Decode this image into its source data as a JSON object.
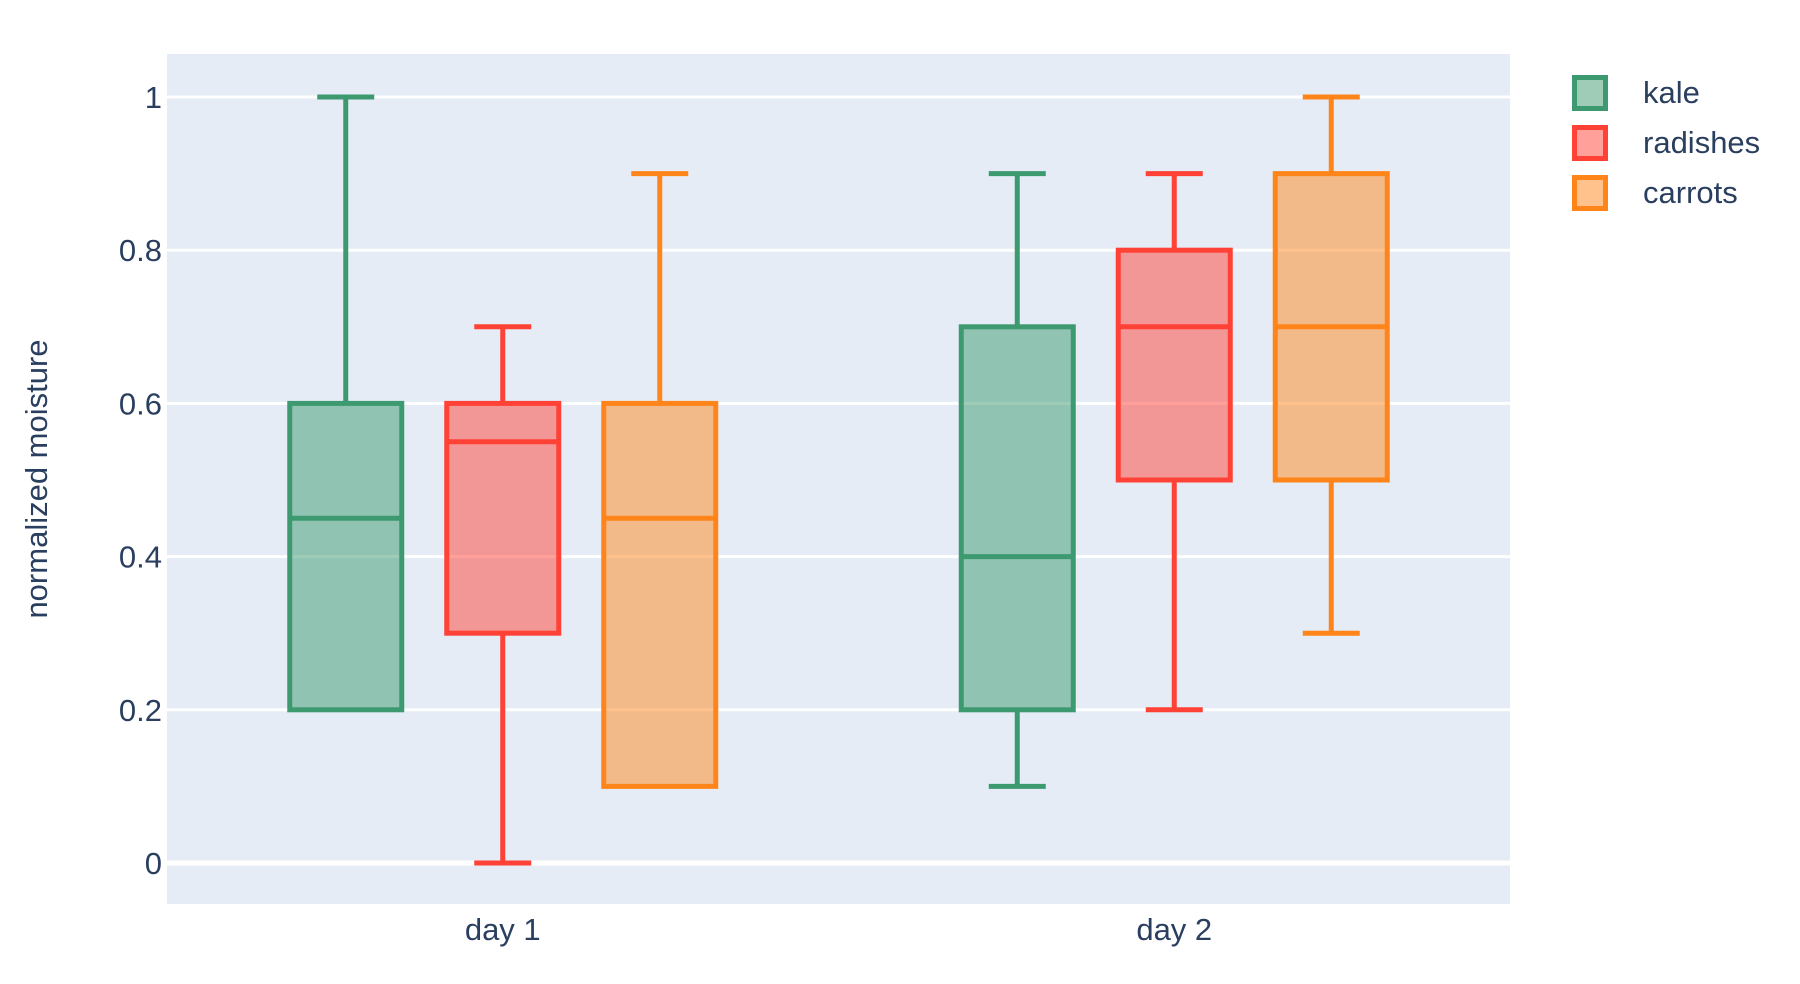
{
  "chart_data": {
    "type": "box",
    "boxmode": "group",
    "title": "",
    "xlabel": "",
    "ylabel": "normalized moisture",
    "categories": [
      "day 1",
      "day 2"
    ],
    "yticks": [
      {
        "value": 0,
        "label": "0"
      },
      {
        "value": 0.2,
        "label": "0.2"
      },
      {
        "value": 0.4,
        "label": "0.4"
      },
      {
        "value": 0.6,
        "label": "0.6"
      },
      {
        "value": 0.8,
        "label": "0.8"
      },
      {
        "value": 1,
        "label": "1"
      }
    ],
    "ylim": [
      -0.054,
      1.056
    ],
    "grid": true,
    "legend_position": "top-right",
    "colors": {
      "page_background": "#FFFFFF",
      "plot_background": "#E5ECF6",
      "grid": "#FFFFFF",
      "text": "#2a3f5f"
    },
    "series": [
      {
        "name": "kale",
        "color": "#3D9970",
        "boxes": [
          {
            "category": "day 1",
            "min": 0.2,
            "q1": 0.2,
            "median": 0.45,
            "q3": 0.6,
            "max": 1.0
          },
          {
            "category": "day 2",
            "min": 0.1,
            "q1": 0.2,
            "median": 0.4,
            "q3": 0.7,
            "max": 0.9
          }
        ]
      },
      {
        "name": "radishes",
        "color": "#FF4136",
        "boxes": [
          {
            "category": "day 1",
            "min": 0.0,
            "q1": 0.3,
            "median": 0.55,
            "q3": 0.6,
            "max": 0.7
          },
          {
            "category": "day 2",
            "min": 0.2,
            "q1": 0.5,
            "median": 0.7,
            "q3": 0.8,
            "max": 0.9
          }
        ]
      },
      {
        "name": "carrots",
        "color": "#FF851B",
        "boxes": [
          {
            "category": "day 1",
            "min": 0.1,
            "q1": 0.1,
            "median": 0.45,
            "q3": 0.6,
            "max": 0.9
          },
          {
            "category": "day 2",
            "min": 0.3,
            "q1": 0.5,
            "median": 0.7,
            "q3": 0.9,
            "max": 1.0
          }
        ]
      }
    ]
  }
}
